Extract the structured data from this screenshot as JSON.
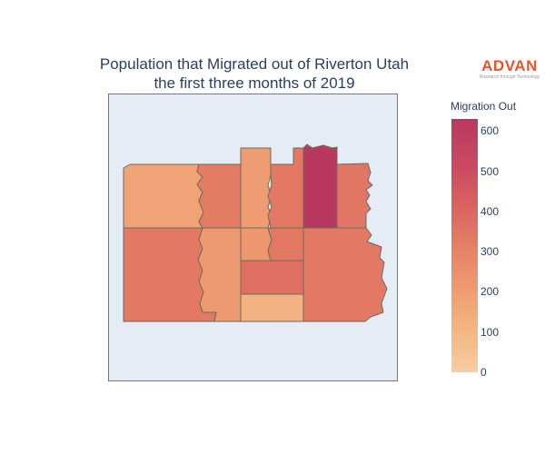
{
  "title": {
    "line1": "Population that Migrated out of Riverton Utah",
    "line2": "the first three months of 2019"
  },
  "logo": {
    "word": "ADVAN",
    "tagline": "Research through Technology",
    "color": "#e8542b"
  },
  "map_data": {
    "type": "choropleth",
    "place": "Riverton Utah",
    "regions": [
      {
        "id": "northwest",
        "value": 170
      },
      {
        "id": "north-central-west",
        "value": 330
      },
      {
        "id": "north-tall-strip",
        "value": 200
      },
      {
        "id": "north-middle-right",
        "value": 340
      },
      {
        "id": "north-east-peak",
        "value": 630
      },
      {
        "id": "north-east",
        "value": 350
      },
      {
        "id": "southwest",
        "value": 340
      },
      {
        "id": "south-west-central",
        "value": 210
      },
      {
        "id": "south-strip",
        "value": 220
      },
      {
        "id": "south-middle-right",
        "value": 340
      },
      {
        "id": "south-center-block",
        "value": 380
      },
      {
        "id": "south-center-bottom",
        "value": 100
      },
      {
        "id": "southeast",
        "value": 340
      }
    ]
  },
  "colorbar": {
    "title": "Migration Out",
    "ticks": [
      "0",
      "100",
      "200",
      "300",
      "400",
      "500",
      "600"
    ],
    "min": 0,
    "max": 630,
    "colorscale": [
      "#f7cea0",
      "#f2b17f",
      "#ee9a70",
      "#e57f66",
      "#db6561",
      "#cb4c60",
      "#b9385f"
    ]
  }
}
